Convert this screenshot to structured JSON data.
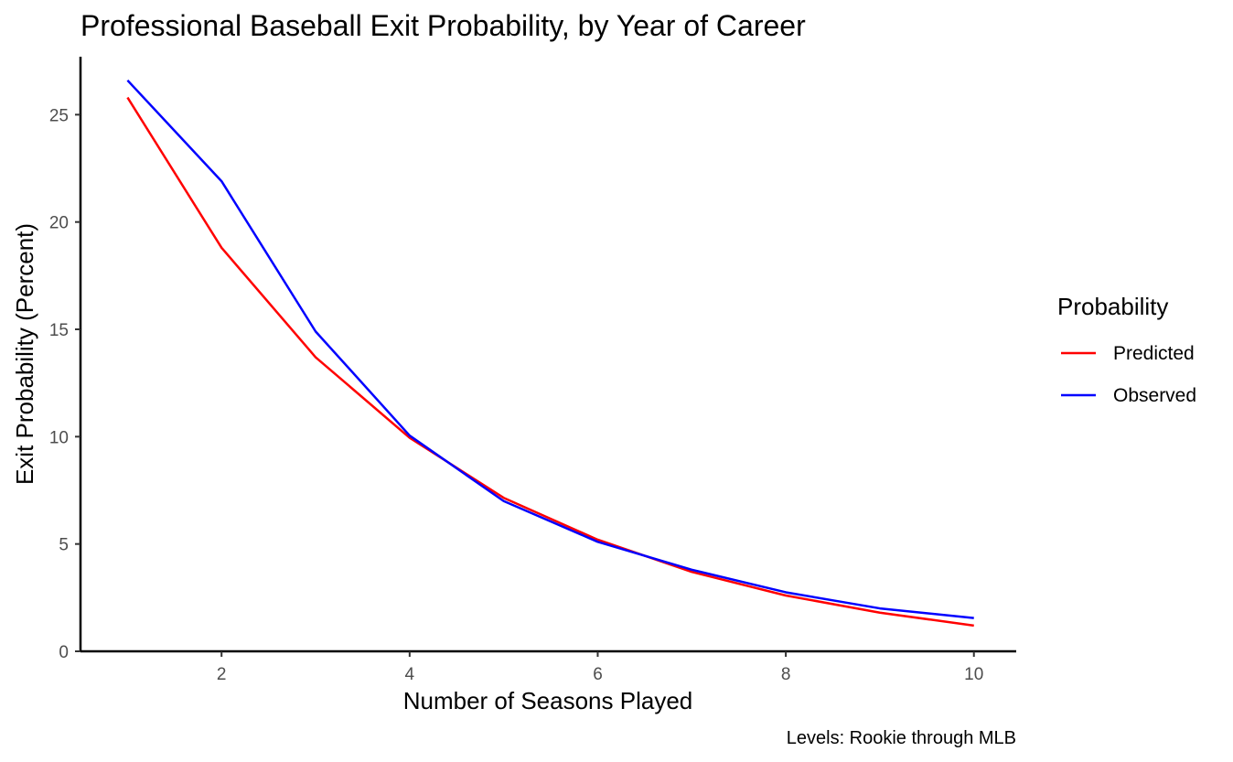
{
  "chart_data": {
    "type": "line",
    "title": "Professional Baseball Exit Probability, by Year of Career",
    "xlabel": "Number of Seasons Played",
    "ylabel": "Exit Probability (Percent)",
    "caption": "Levels: Rookie through MLB",
    "x": [
      1,
      2,
      3,
      4,
      5,
      6,
      7,
      8,
      9,
      10
    ],
    "xlim": [
      0.5,
      10.45
    ],
    "ylim": [
      0,
      27.7
    ],
    "x_ticks": [
      2,
      4,
      6,
      8,
      10
    ],
    "y_ticks": [
      0,
      5,
      10,
      15,
      20,
      25
    ],
    "grid": false,
    "legend": {
      "title": "Probability",
      "position": "right"
    },
    "series": [
      {
        "name": "Predicted",
        "color": "#ff0000",
        "values": [
          25.8,
          18.8,
          13.7,
          9.95,
          7.15,
          5.2,
          3.7,
          2.6,
          1.8,
          1.2
        ]
      },
      {
        "name": "Observed",
        "color": "#0000ff",
        "values": [
          26.6,
          21.9,
          14.9,
          10.05,
          7.0,
          5.1,
          3.8,
          2.75,
          2.0,
          1.55
        ]
      }
    ]
  }
}
